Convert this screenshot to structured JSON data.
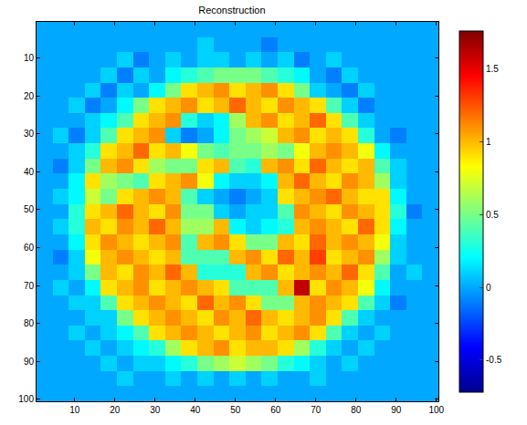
{
  "chart_data": {
    "type": "heatmap",
    "title": "Reconstruction",
    "x": [
      2.5,
      6.5,
      10.5,
      14.5,
      18.5,
      22.5,
      26.5,
      30.5,
      34.5,
      38.5,
      42.5,
      46.5,
      50.5,
      54.5,
      58.5,
      62.5,
      66.5,
      70.5,
      74.5,
      78.5,
      82.5,
      86.5,
      90.5,
      94.5,
      98.5
    ],
    "y": [
      2.5,
      6.5,
      10.5,
      14.5,
      18.5,
      22.5,
      26.5,
      30.5,
      34.5,
      38.5,
      42.5,
      46.5,
      50.5,
      54.5,
      58.5,
      62.5,
      66.5,
      70.5,
      74.5,
      78.5,
      82.5,
      86.5,
      90.5,
      94.5,
      98.5
    ],
    "z": [
      [
        0.0,
        0.0,
        0.0,
        0.0,
        0.0,
        0.0,
        0.0,
        0.0,
        0.0,
        0.0,
        0.0,
        0.0,
        0.0,
        0.0,
        0.0,
        0.0,
        0.0,
        0.0,
        0.0,
        0.0,
        0.0,
        0.0,
        0.0,
        0.0,
        0.0
      ],
      [
        0.0,
        0.0,
        0.0,
        0.0,
        0.0,
        0.0,
        0.0,
        0.0,
        0.0,
        0.0,
        0.1,
        0.0,
        0.0,
        0.0,
        -0.1,
        0.0,
        0.0,
        0.0,
        0.0,
        0.0,
        0.0,
        0.0,
        0.0,
        0.0,
        0.0
      ],
      [
        0.0,
        0.0,
        0.0,
        0.0,
        0.0,
        0.1,
        -0.1,
        0.0,
        0.1,
        0.0,
        0.1,
        0.1,
        0.0,
        0.1,
        0.0,
        0.1,
        -0.1,
        0.0,
        0.1,
        0.0,
        0.0,
        0.0,
        0.0,
        0.0,
        0.0
      ],
      [
        0.0,
        0.0,
        0.0,
        0.0,
        0.1,
        -0.1,
        0.1,
        0.0,
        0.2,
        0.3,
        0.4,
        0.5,
        0.5,
        0.5,
        0.4,
        0.3,
        0.2,
        0.0,
        -0.1,
        0.1,
        0.0,
        0.0,
        0.0,
        0.0,
        0.0
      ],
      [
        0.0,
        0.0,
        0.0,
        0.1,
        -0.1,
        0.1,
        0.0,
        0.2,
        0.5,
        0.9,
        1.0,
        1.1,
        0.9,
        1.0,
        1.1,
        0.9,
        0.5,
        0.1,
        0.0,
        -0.1,
        0.1,
        0.0,
        0.0,
        0.0,
        0.0
      ],
      [
        0.0,
        0.0,
        0.1,
        -0.1,
        0.0,
        0.2,
        0.5,
        0.9,
        1.0,
        1.1,
        0.9,
        1.0,
        1.2,
        1.0,
        0.9,
        1.1,
        1.0,
        0.9,
        0.4,
        0.1,
        -0.1,
        0.0,
        0.0,
        0.0,
        0.0
      ],
      [
        0.0,
        0.0,
        0.0,
        0.1,
        0.2,
        0.4,
        0.9,
        1.0,
        1.1,
        0.3,
        0.1,
        0.2,
        0.6,
        1.0,
        1.1,
        0.9,
        1.0,
        1.2,
        0.9,
        0.4,
        0.1,
        0.0,
        0.0,
        0.0,
        0.0
      ],
      [
        0.0,
        0.1,
        -0.1,
        0.1,
        0.4,
        0.9,
        1.0,
        1.1,
        0.1,
        -0.1,
        0.0,
        0.2,
        0.5,
        0.6,
        0.7,
        1.0,
        1.1,
        0.9,
        1.0,
        0.9,
        0.3,
        0.0,
        -0.1,
        0.0,
        0.0
      ],
      [
        0.0,
        0.0,
        0.1,
        0.3,
        0.9,
        1.0,
        1.2,
        0.9,
        1.0,
        0.8,
        0.5,
        0.4,
        0.5,
        0.5,
        0.6,
        0.5,
        0.8,
        1.0,
        1.1,
        1.0,
        0.8,
        0.2,
        0.0,
        0.0,
        0.0
      ],
      [
        0.0,
        -0.1,
        0.1,
        0.5,
        1.0,
        1.1,
        0.9,
        0.6,
        0.5,
        0.5,
        0.9,
        1.0,
        0.4,
        0.3,
        1.0,
        1.1,
        0.9,
        1.2,
        1.0,
        0.9,
        1.0,
        0.4,
        0.1,
        0.0,
        0.0
      ],
      [
        0.0,
        0.0,
        0.2,
        0.9,
        0.6,
        0.5,
        0.4,
        0.9,
        1.0,
        1.1,
        0.8,
        0.2,
        0.1,
        0.1,
        0.2,
        1.0,
        1.2,
        1.0,
        0.9,
        1.1,
        1.0,
        0.6,
        0.1,
        0.0,
        0.0
      ],
      [
        0.0,
        0.1,
        0.2,
        0.7,
        0.5,
        0.9,
        1.0,
        1.1,
        1.0,
        0.4,
        0.1,
        0.0,
        -0.1,
        0.0,
        0.1,
        0.9,
        1.0,
        1.1,
        1.2,
        1.0,
        0.9,
        0.9,
        0.2,
        0.0,
        0.0
      ],
      [
        0.0,
        0.0,
        0.3,
        0.9,
        1.0,
        1.2,
        1.0,
        0.9,
        1.1,
        0.5,
        0.5,
        0.1,
        0.0,
        0.1,
        0.1,
        0.4,
        1.1,
        1.0,
        0.9,
        1.1,
        1.0,
        0.9,
        0.3,
        -0.1,
        0.0
      ],
      [
        0.0,
        0.1,
        0.3,
        1.0,
        0.9,
        1.1,
        1.0,
        1.2,
        1.0,
        0.6,
        0.6,
        1.0,
        0.2,
        0.1,
        0.2,
        0.3,
        1.0,
        1.1,
        1.0,
        0.9,
        1.2,
        0.9,
        0.2,
        0.0,
        0.0
      ],
      [
        0.0,
        0.0,
        0.2,
        0.9,
        1.1,
        1.0,
        0.9,
        1.0,
        1.1,
        0.4,
        1.0,
        1.1,
        0.9,
        0.5,
        0.5,
        1.0,
        0.9,
        1.2,
        1.0,
        1.1,
        1.0,
        0.8,
        0.1,
        0.0,
        0.0
      ],
      [
        0.0,
        -0.1,
        0.1,
        0.8,
        1.0,
        1.1,
        1.0,
        0.9,
        1.0,
        0.4,
        0.4,
        0.4,
        1.0,
        1.1,
        0.9,
        1.2,
        1.0,
        1.3,
        0.9,
        1.0,
        1.1,
        0.6,
        0.1,
        0.0,
        0.0
      ],
      [
        0.0,
        0.0,
        0.1,
        0.5,
        1.0,
        0.9,
        1.1,
        1.0,
        1.2,
        1.0,
        0.3,
        0.3,
        0.3,
        1.0,
        1.1,
        0.9,
        1.0,
        1.1,
        1.0,
        1.2,
        0.9,
        0.4,
        0.0,
        0.1,
        0.0
      ],
      [
        0.0,
        0.1,
        0.0,
        0.2,
        0.9,
        1.0,
        1.1,
        0.9,
        1.0,
        1.1,
        1.0,
        0.9,
        0.4,
        0.4,
        0.4,
        1.0,
        1.6,
        0.9,
        1.1,
        1.0,
        0.8,
        0.2,
        0.0,
        0.0,
        0.0
      ],
      [
        0.0,
        0.0,
        0.1,
        0.1,
        0.4,
        0.9,
        1.0,
        1.1,
        1.0,
        0.9,
        1.2,
        1.0,
        1.1,
        0.9,
        0.5,
        0.5,
        1.0,
        1.1,
        1.0,
        0.9,
        0.4,
        0.1,
        -0.1,
        0.0,
        0.0
      ],
      [
        0.0,
        0.0,
        0.0,
        0.1,
        0.1,
        0.5,
        0.9,
        1.0,
        1.1,
        1.0,
        0.9,
        1.1,
        1.0,
        1.2,
        1.0,
        0.9,
        1.0,
        1.1,
        0.9,
        0.4,
        0.1,
        0.0,
        0.0,
        0.0,
        0.0
      ],
      [
        0.0,
        0.0,
        0.1,
        0.0,
        0.1,
        0.2,
        0.4,
        0.9,
        1.0,
        1.1,
        1.0,
        0.9,
        1.0,
        1.1,
        0.9,
        1.0,
        1.1,
        0.9,
        0.4,
        0.1,
        0.0,
        0.1,
        0.0,
        0.0,
        0.0
      ],
      [
        0.0,
        0.0,
        0.0,
        0.1,
        0.0,
        0.1,
        0.2,
        0.3,
        0.6,
        0.9,
        1.0,
        1.1,
        0.9,
        1.0,
        1.0,
        0.9,
        0.6,
        0.3,
        0.1,
        0.0,
        0.1,
        0.0,
        0.0,
        0.0,
        0.0
      ],
      [
        0.0,
        0.0,
        0.0,
        0.0,
        0.1,
        0.0,
        0.1,
        0.1,
        0.2,
        0.3,
        0.5,
        0.6,
        0.7,
        0.6,
        0.5,
        0.3,
        0.2,
        0.1,
        0.0,
        0.1,
        0.0,
        0.0,
        0.0,
        0.0,
        0.0
      ],
      [
        0.0,
        0.0,
        0.0,
        0.0,
        0.0,
        0.1,
        0.0,
        0.0,
        0.1,
        0.0,
        0.1,
        0.0,
        0.1,
        0.0,
        0.1,
        0.0,
        0.0,
        0.1,
        0.0,
        0.0,
        0.0,
        0.0,
        0.0,
        0.0,
        0.0
      ],
      [
        0.0,
        0.0,
        0.0,
        0.0,
        0.0,
        0.0,
        0.0,
        0.0,
        0.0,
        0.0,
        0.0,
        0.0,
        0.0,
        0.0,
        0.0,
        0.0,
        0.0,
        0.0,
        0.0,
        0.0,
        0.0,
        0.0,
        0.0,
        0.0,
        0.0
      ]
    ],
    "xlim": [
      0.5,
      100.5
    ],
    "ylim": [
      100.5,
      0.5
    ],
    "xticks": [
      10,
      20,
      30,
      40,
      50,
      60,
      70,
      80,
      90,
      100
    ],
    "yticks": [
      10,
      20,
      30,
      40,
      50,
      60,
      70,
      80,
      90,
      100
    ],
    "zlim": [
      -0.72,
      1.76
    ],
    "zticks": [
      -0.5,
      0,
      0.5,
      1,
      1.5
    ]
  }
}
